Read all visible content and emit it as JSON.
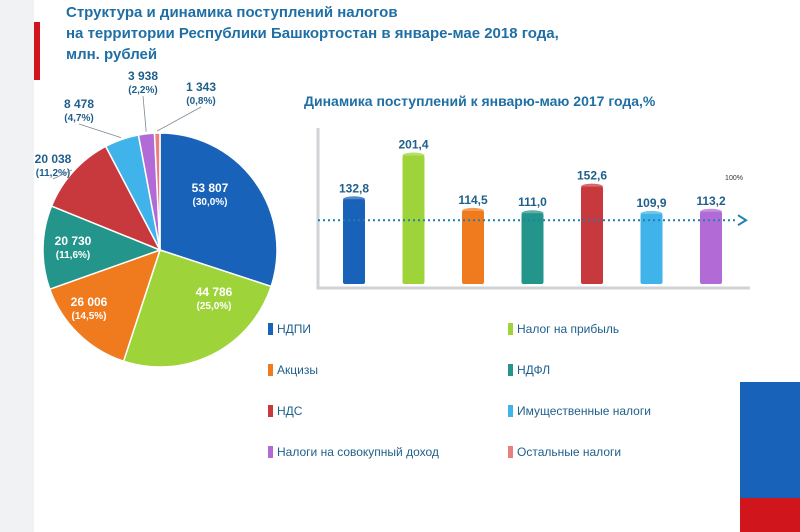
{
  "header": {
    "title_line1": "Структура и динамика поступлений налогов",
    "title_line2": "на территории Республики Башкортостан в январе-мае 2018 года,",
    "title_line3": "млн. рублей"
  },
  "chart_data": [
    {
      "type": "pie",
      "title": "",
      "slices": [
        {
          "name": "НДПИ",
          "value": 53807,
          "value_label": "53 807",
          "percent_label": "(30,0%)",
          "color": "#1862b9"
        },
        {
          "name": "Налог на прибыль",
          "value": 44786,
          "value_label": "44 786",
          "percent_label": "(25,0%)",
          "color": "#9ed43a"
        },
        {
          "name": "Акцизы",
          "value": 26006,
          "value_label": "26 006",
          "percent_label": "(14,5%)",
          "color": "#f07a1e"
        },
        {
          "name": "НДФЛ",
          "value": 20730,
          "value_label": "20 730",
          "percent_label": "(11,6%)",
          "color": "#23958a"
        },
        {
          "name": "НДС",
          "value": 20038,
          "value_label": "20 038",
          "percent_label": "(11,2%)",
          "color": "#c8393e"
        },
        {
          "name": "Имущественные   налоги",
          "value": 8478,
          "value_label": "8 478",
          "percent_label": "(4,7%)",
          "color": "#3fb3ea"
        },
        {
          "name": "Налоги на совокупный  доход",
          "value": 3938,
          "value_label": "3 938",
          "percent_label": "(2,2%)",
          "color": "#b26bd6"
        },
        {
          "name": "Остальные  налоги",
          "value": 1343,
          "value_label": "1 343",
          "percent_label": "(0,8%)",
          "color": "#e8807f"
        }
      ]
    },
    {
      "type": "bar",
      "title": "Динамика поступлений к январю-маю 2017 года,%",
      "categories": [
        "НДПИ",
        "Налог на прибыль",
        "Акцизы",
        "НДФЛ",
        "НДС",
        "Имущественные   налоги",
        "Налоги на совокупный  доход"
      ],
      "values": [
        132.8,
        201.4,
        114.5,
        111.0,
        152.6,
        109.9,
        113.2
      ],
      "value_labels": [
        "132,8",
        "201,4",
        "114,5",
        "111,0",
        "152,6",
        "109,9",
        "113,2"
      ],
      "colors": [
        "#1862b9",
        "#9ed43a",
        "#f07a1e",
        "#23958a",
        "#c8393e",
        "#3fb3ea",
        "#b26bd6"
      ],
      "reference_line": {
        "value": 100,
        "label": "100%"
      },
      "ylim": [
        0,
        210
      ],
      "grid": false
    }
  ],
  "legend": {
    "items": [
      {
        "label": "НДПИ",
        "color": "#1862b9"
      },
      {
        "label": "Налог на прибыль",
        "color": "#9ed43a"
      },
      {
        "label": "Акцизы",
        "color": "#f07a1e"
      },
      {
        "label": "НДФЛ",
        "color": "#23958a"
      },
      {
        "label": "НДС",
        "color": "#c8393e"
      },
      {
        "label": "Имущественные   налоги",
        "color": "#3fb3ea"
      },
      {
        "label": "Налоги на совокупный  доход",
        "color": "#b26bd6"
      },
      {
        "label": "Остальные  налоги",
        "color": "#e8807f"
      }
    ]
  }
}
